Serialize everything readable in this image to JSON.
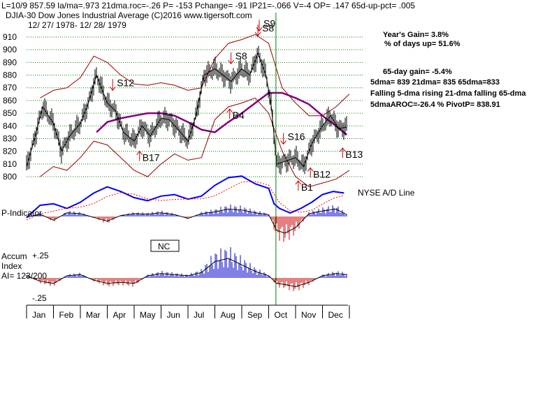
{
  "header": {
    "line1": "L=10/9  857.59  la/ma=.973 21dma.roc=-.26 P= -153 Pchange= -91 IP21=-.066 V=-4 OP= .147 65d-up-pct= .005",
    "line2": "DJIA-30  Dow Jones Industrial Average   (C)2016 www.tigersoft.com",
    "line3": "12/ 27/ 1978- 12/ 28/ 1979"
  },
  "stats": {
    "years_gain": "Year's Gain= 3.8%",
    "pct_days_up": "% of days up= 51.6%",
    "gain_65": "65-day gain= -5.4%",
    "dma_values": "5dma= 839 21dma= 835 65dma=833",
    "trend": "Falling 5-dma  rising 21-dma  falling 65-dma",
    "aroc": "5dmaAROC=-26.4  %  PivotP= 838.91"
  },
  "labels": {
    "nyse": "NYSE A/D Line",
    "p_indicator": "P-Indicator",
    "nc": "NC",
    "accum_line1": "Accum",
    "accum_line2": "Index",
    "ai": "AI= 123/200",
    "plus25": "+.25",
    "minus25": "-.25"
  },
  "colors": {
    "price": "#000000",
    "band": "#990000",
    "ma65": "#800080",
    "ad_line": "#0000ff",
    "ad_ma": "#ff0000",
    "grid": "#008000",
    "pos_bar": "#0000cc",
    "neg_bar": "#cc0000",
    "signal_sell": "#cc0000",
    "signal_buy": "#cc0000"
  },
  "chart_data": {
    "type": "line",
    "title": "DJIA-30 Dow Jones Industrial Average",
    "ylim": [
      795,
      915
    ],
    "yticks": [
      800,
      810,
      820,
      830,
      840,
      850,
      860,
      870,
      880,
      890,
      900,
      910
    ],
    "months": [
      "Jan",
      "Feb",
      "Mar",
      "Apr",
      "May",
      "Jun",
      "Jul",
      "Aug",
      "Sep",
      "Oct",
      "Nov",
      "Dec"
    ],
    "signal_day": 9.27,
    "series": [
      {
        "name": "DJIA close",
        "x": [
          0,
          0.3,
          0.6,
          1.0,
          1.3,
          1.6,
          2.0,
          2.3,
          2.6,
          3.0,
          3.3,
          3.6,
          4.0,
          4.3,
          4.6,
          5.0,
          5.3,
          5.6,
          6.0,
          6.3,
          6.6,
          7.0,
          7.3,
          7.6,
          8.0,
          8.3,
          8.6,
          8.9,
          9.1,
          9.3,
          9.6,
          10.0,
          10.3,
          10.6,
          11.0,
          11.3,
          11.6,
          11.9
        ],
        "values": [
          808,
          830,
          855,
          842,
          820,
          832,
          842,
          858,
          880,
          858,
          852,
          835,
          828,
          840,
          832,
          846,
          845,
          838,
          828,
          848,
          880,
          885,
          880,
          875,
          885,
          880,
          897,
          880,
          855,
          810,
          812,
          815,
          808,
          826,
          840,
          848,
          838,
          839
        ]
      },
      {
        "name": "65-dma",
        "x": [
          2.6,
          3.0,
          3.5,
          4.0,
          4.5,
          5.0,
          5.5,
          6.0,
          6.5,
          7.0,
          7.5,
          8.0,
          8.5,
          9.0,
          9.5,
          10.0,
          10.5,
          11.0,
          11.5,
          11.9
        ],
        "values": [
          835,
          843,
          846,
          848,
          850,
          850,
          848,
          843,
          837,
          835,
          843,
          850,
          858,
          866,
          866,
          862,
          857,
          848,
          840,
          833
        ]
      },
      {
        "name": "upper band",
        "x": [
          0.5,
          1.0,
          1.5,
          2.0,
          2.5,
          3.0,
          3.5,
          4.0,
          4.5,
          5.0,
          5.5,
          6.0,
          6.5,
          7.0,
          7.5,
          8.0,
          8.5,
          9.0,
          9.5,
          10.0,
          10.5,
          11.0,
          11.5,
          12.0
        ],
        "values": [
          862,
          868,
          870,
          878,
          895,
          890,
          880,
          873,
          872,
          874,
          872,
          868,
          870,
          893,
          905,
          908,
          912,
          905,
          870,
          858,
          848,
          848,
          855,
          865
        ]
      },
      {
        "name": "lower band",
        "x": [
          0.5,
          1.0,
          1.5,
          2.0,
          2.5,
          3.0,
          3.5,
          4.0,
          4.5,
          5.0,
          5.5,
          6.0,
          6.5,
          7.0,
          7.5,
          8.0,
          8.5,
          9.0,
          9.5,
          10.0,
          10.5,
          11.0,
          11.5,
          12.0
        ],
        "values": [
          800,
          808,
          805,
          815,
          828,
          825,
          815,
          805,
          800,
          810,
          818,
          813,
          815,
          845,
          855,
          858,
          862,
          850,
          820,
          800,
          792,
          795,
          798,
          805
        ]
      },
      {
        "name": "NYSE A/D Line",
        "x": [
          0,
          0.5,
          1.0,
          1.5,
          2.0,
          2.5,
          3.0,
          3.5,
          4.0,
          4.5,
          5.0,
          5.5,
          6.0,
          6.5,
          7.0,
          7.5,
          8.0,
          8.5,
          9.0,
          9.2,
          9.4,
          9.8,
          10.2,
          10.6,
          11.0,
          11.4,
          11.8
        ],
        "values": [
          -0.3,
          0.5,
          0.6,
          0.3,
          0.7,
          1.3,
          1.7,
          1.4,
          1.0,
          0.8,
          1.1,
          1.2,
          0.9,
          1.1,
          1.8,
          2.3,
          2.4,
          1.9,
          1.6,
          0.6,
          0.3,
          0.0,
          0.3,
          0.7,
          1.2,
          1.4,
          1.3
        ]
      },
      {
        "name": "P-Indicator",
        "x": [
          0,
          0.5,
          1.0,
          1.5,
          2.0,
          2.5,
          3.0,
          3.5,
          4.0,
          4.5,
          5.0,
          5.5,
          6.0,
          6.5,
          7.0,
          7.5,
          8.0,
          8.5,
          9.0,
          9.3,
          9.6,
          10.0,
          10.5,
          11.0,
          11.5,
          11.9
        ],
        "values": [
          -10,
          25,
          -40,
          40,
          30,
          -10,
          -50,
          10,
          30,
          25,
          40,
          20,
          -20,
          30,
          50,
          80,
          70,
          40,
          20,
          -150,
          -180,
          -120,
          30,
          60,
          80,
          20
        ]
      },
      {
        "name": "Accumulation Index",
        "x": [
          0,
          0.5,
          1.0,
          1.5,
          2.0,
          2.5,
          3.0,
          3.5,
          4.0,
          4.5,
          5.0,
          5.5,
          6.0,
          6.5,
          7.0,
          7.5,
          8.0,
          8.5,
          9.0,
          9.3,
          9.6,
          10.0,
          10.5,
          11.0,
          11.5,
          11.9
        ],
        "values": [
          0.02,
          -0.03,
          -0.05,
          0.02,
          0.03,
          -0.02,
          -0.05,
          -0.04,
          -0.05,
          0.02,
          0.04,
          0.03,
          0.02,
          0.05,
          0.15,
          0.18,
          0.12,
          0.06,
          0.02,
          -0.05,
          -0.06,
          -0.08,
          -0.04,
          0.02,
          0.04,
          0.03
        ]
      }
    ],
    "signals": [
      {
        "label": "S12",
        "type": "sell",
        "x": 3.2
      },
      {
        "label": "B17",
        "type": "buy",
        "x": 4.2
      },
      {
        "label": "S8",
        "type": "sell",
        "x": 7.6
      },
      {
        "label": "S8",
        "type": "sell",
        "x": 8.6
      },
      {
        "label": "S9",
        "type": "sell",
        "x": 8.65
      },
      {
        "label": "B4",
        "type": "buy",
        "x": 7.55
      },
      {
        "label": "S16",
        "type": "sell",
        "x": 9.55
      },
      {
        "label": "B1",
        "type": "buy",
        "x": 10.1
      },
      {
        "label": "B12",
        "type": "buy",
        "x": 10.55
      },
      {
        "label": "B13",
        "type": "buy",
        "x": 11.75
      }
    ]
  }
}
